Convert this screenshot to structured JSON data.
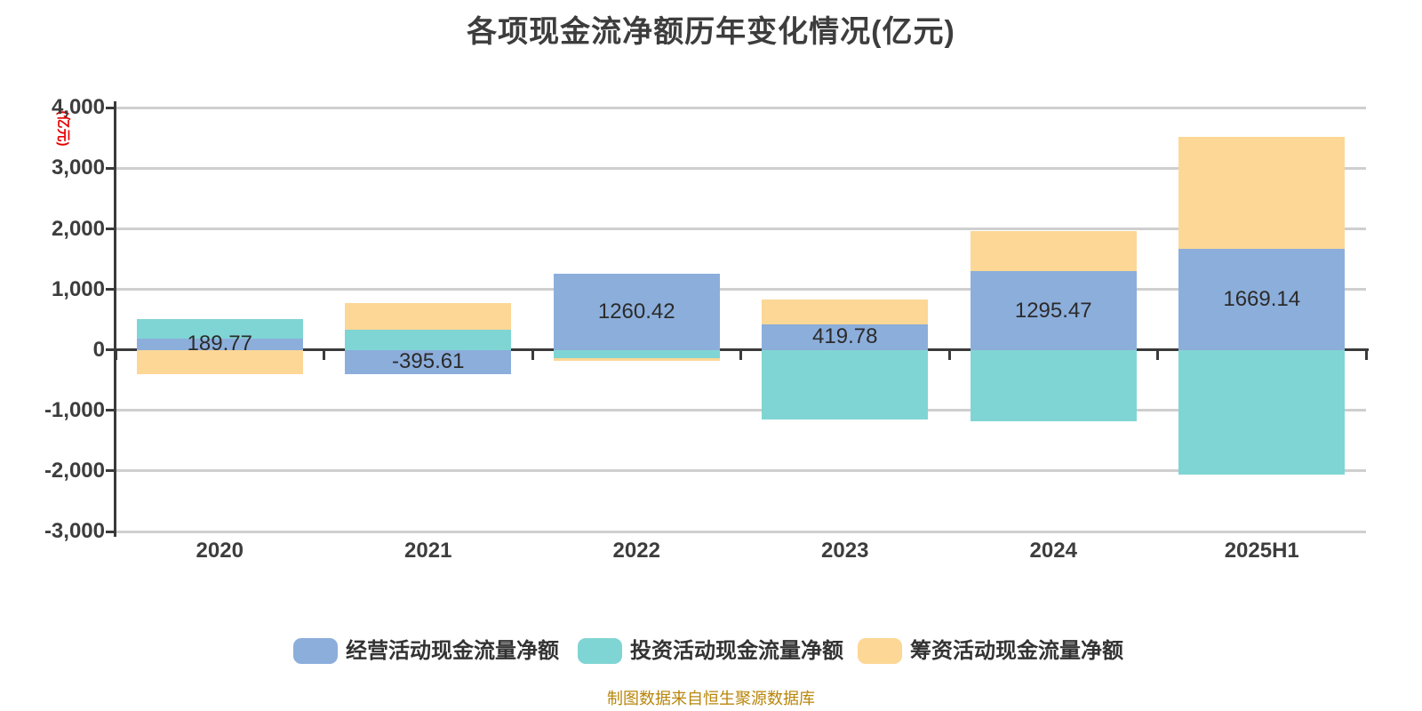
{
  "title": "各项现金流净额历年变化情况(亿元)",
  "y_axis": {
    "name": "(亿元)",
    "min": -3000,
    "max": 4000,
    "ticks": [
      {
        "label": "4,000",
        "value": 4000
      },
      {
        "label": "3,000",
        "value": 3000
      },
      {
        "label": "2,000",
        "value": 2000
      },
      {
        "label": "1,000",
        "value": 1000
      },
      {
        "label": "0",
        "value": 0
      },
      {
        "label": "-1,000",
        "value": -1000
      },
      {
        "label": "-2,000",
        "value": -2000
      },
      {
        "label": "-3,000",
        "value": -3000
      }
    ]
  },
  "chart_data": {
    "type": "bar",
    "stacked": true,
    "grid": true,
    "legend_position": "bottom",
    "title": "各项现金流净额历年变化情况(亿元)",
    "xlabel": "",
    "ylabel": "(亿元)",
    "ylim": [
      -3000,
      4000
    ],
    "categories": [
      "2020",
      "2021",
      "2022",
      "2023",
      "2024",
      "2025H1"
    ],
    "series": [
      {
        "key": "operating",
        "name": "经营活动现金流量净额",
        "color": "#8CAEDB",
        "values": [
          189.77,
          -395.61,
          1260.42,
          419.78,
          1295.47,
          1669.14
        ]
      },
      {
        "key": "investing",
        "name": "投资活动现金流量净额",
        "color": "#7FD5D3",
        "values": [
          320,
          340,
          -130,
          -1150,
          -1185,
          -2060
        ],
        "estimated": true
      },
      {
        "key": "financing",
        "name": "筹资活动现金流量净额",
        "color": "#FCD796",
        "values": [
          -400,
          440,
          -45,
          415,
          670,
          1850
        ],
        "estimated": true
      }
    ],
    "bar_labels": [
      "189.77",
      "-395.61",
      "1260.42",
      "419.78",
      "1295.47",
      "1669.14"
    ]
  },
  "legend": {
    "items": [
      {
        "label": "经营活动现金流量净额",
        "color": "#8CAEDB"
      },
      {
        "label": "投资活动现金流量净额",
        "color": "#7FD5D3"
      },
      {
        "label": "筹资活动现金流量净额",
        "color": "#FCD796"
      }
    ]
  },
  "footer": "制图数据来自恒生聚源数据库",
  "colors": {
    "gridline": "#cfcfcf",
    "axis": "#3a3a3a",
    "axis_name": "#e60000",
    "bar_label_text": "#2b2b2b",
    "footer_text": "#b8860b"
  }
}
